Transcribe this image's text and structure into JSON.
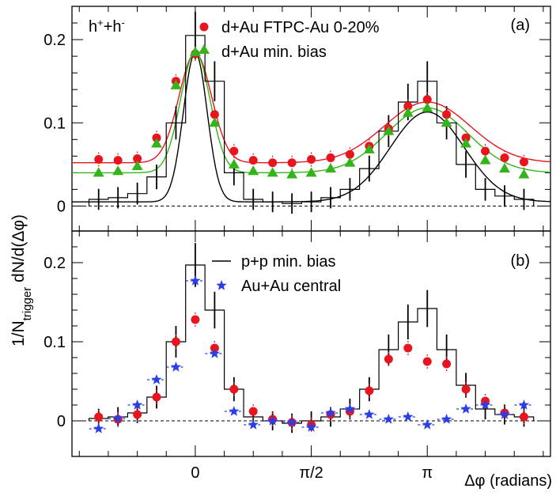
{
  "chart_data": [
    {
      "panel": "a",
      "type": "scatter",
      "panel_label": "(a)",
      "species_label": "h",
      "species_sup1": "+",
      "species_mid": "+h",
      "species_sup2": "-",
      "xlim": [
        -1.67,
        4.81
      ],
      "ylim": [
        -0.03,
        0.24
      ],
      "yticks": [
        0,
        0.1,
        0.2
      ],
      "ytick_labels": [
        "0",
        "0.1",
        "0.2"
      ],
      "legend": [
        {
          "label": "d+Au FTPC-Au 0-20%",
          "marker": "circle",
          "color": "#e8141e"
        },
        {
          "label": "d+Au min. bias",
          "marker": "triangle",
          "color": "#33b51a"
        }
      ],
      "x": [
        -1.309,
        -1.047,
        -0.785,
        -0.524,
        -0.262,
        0.0,
        0.262,
        0.524,
        0.785,
        1.047,
        1.309,
        1.571,
        1.833,
        2.094,
        2.356,
        2.618,
        2.88,
        3.142,
        3.403,
        3.665,
        3.927,
        4.189,
        4.451
      ],
      "series": [
        {
          "name": "d+Au FTPC-Au 0-20%",
          "color": "#e8141e",
          "values": [
            0.056,
            0.055,
            0.057,
            0.082,
            0.15,
            0.183,
            0.11,
            0.066,
            0.055,
            0.052,
            0.052,
            0.056,
            0.058,
            0.062,
            0.072,
            0.093,
            0.12,
            0.128,
            0.11,
            0.082,
            0.066,
            0.058,
            0.053
          ]
        },
        {
          "name": "d+Au min. bias",
          "color": "#33b51a",
          "values": [
            0.04,
            0.042,
            0.048,
            0.075,
            0.145,
            0.185,
            0.1,
            0.05,
            0.042,
            0.04,
            0.038,
            0.04,
            0.045,
            0.052,
            0.068,
            0.09,
            0.112,
            0.118,
            0.1,
            0.075,
            0.055,
            0.045,
            0.038
          ]
        },
        {
          "name": "p+p min. bias",
          "color": "#000000",
          "values": [
            0.008,
            0.01,
            0.015,
            0.035,
            0.1,
            0.205,
            0.15,
            0.04,
            0.008,
            0.005,
            0.003,
            0.005,
            0.01,
            0.02,
            0.045,
            0.09,
            0.125,
            0.15,
            0.1,
            0.05,
            0.02,
            0.012,
            0.008
          ]
        }
      ],
      "fits": [
        {
          "name": "d+Au FTPC-Au 0-20% fit",
          "color": "#e8141e",
          "base": 0.052,
          "near_amp": 0.132,
          "near_sigma": 0.22,
          "away_amp": 0.073,
          "away_sigma": 0.58
        },
        {
          "name": "d+Au min. bias fit",
          "color": "#33b51a",
          "base": 0.04,
          "near_amp": 0.145,
          "near_sigma": 0.2,
          "away_amp": 0.078,
          "away_sigma": 0.55
        },
        {
          "name": "p+p min. bias fit",
          "color": "#000000",
          "base": 0.005,
          "near_amp": 0.18,
          "near_sigma": 0.16,
          "away_amp": 0.108,
          "away_sigma": 0.5
        }
      ]
    },
    {
      "panel": "b",
      "type": "scatter",
      "panel_label": "(b)",
      "xlim": [
        -1.67,
        4.81
      ],
      "ylim": [
        -0.045,
        0.24
      ],
      "yticks": [
        0,
        0.1,
        0.2
      ],
      "ytick_labels": [
        "0",
        "0.1",
        "0.2"
      ],
      "xticks": [
        0,
        1.5708,
        3.1416
      ],
      "xtick_labels": [
        "0",
        "π/2",
        "π"
      ],
      "xlabel": "Δφ (radians)",
      "ylabel_main": "1/N",
      "ylabel_sub": "trigger",
      "ylabel_rest": " dN/d(Δφ)",
      "legend": [
        {
          "label": "p+p min. bias",
          "marker": "line",
          "color": "#000000"
        },
        {
          "label": "Au+Au central",
          "marker": "star",
          "color": "#2a3ee8"
        }
      ],
      "x": [
        -1.309,
        -1.047,
        -0.785,
        -0.524,
        -0.262,
        0.0,
        0.262,
        0.524,
        0.785,
        1.047,
        1.309,
        1.571,
        1.833,
        2.094,
        2.356,
        2.618,
        2.88,
        3.142,
        3.403,
        3.665,
        3.927,
        4.189,
        4.451
      ],
      "series": [
        {
          "name": "p+p min. bias",
          "color": "#000000",
          "values": [
            0.003,
            0.005,
            0.01,
            0.03,
            0.1,
            0.197,
            0.14,
            0.04,
            0.005,
            0.0,
            -0.003,
            0.0,
            0.005,
            0.015,
            0.04,
            0.09,
            0.125,
            0.142,
            0.09,
            0.045,
            0.015,
            0.008,
            0.005
          ]
        },
        {
          "name": "d+Au FTPC-Au 0-20%",
          "color": "#e8141e",
          "values": [
            0.005,
            0.002,
            0.008,
            0.03,
            0.1,
            0.128,
            0.092,
            0.04,
            0.012,
            0.002,
            -0.002,
            -0.005,
            0.008,
            0.012,
            0.038,
            0.078,
            0.092,
            0.075,
            0.072,
            0.04,
            0.025,
            0.01,
            0.005
          ]
        },
        {
          "name": "Au+Au central",
          "color": "#2a3ee8",
          "values": [
            -0.01,
            0.003,
            0.02,
            0.052,
            0.068,
            0.177,
            0.085,
            0.012,
            -0.005,
            0.0,
            -0.002,
            -0.008,
            0.01,
            0.015,
            0.008,
            0.002,
            0.005,
            -0.005,
            0.002,
            0.015,
            0.02,
            0.008,
            0.02
          ]
        }
      ]
    }
  ]
}
